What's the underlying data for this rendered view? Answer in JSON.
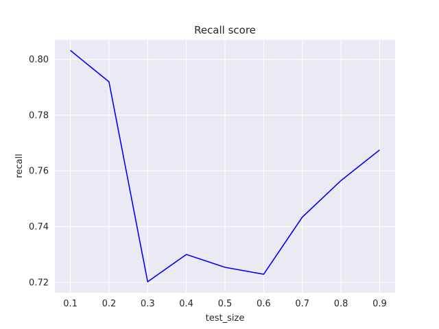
{
  "chart_data": {
    "type": "line",
    "title": "Recall score",
    "xlabel": "test_size",
    "ylabel": "recall",
    "x": [
      0.1,
      0.2,
      0.3,
      0.4,
      0.5,
      0.6,
      0.7,
      0.8,
      0.9
    ],
    "series": [
      {
        "values": [
          0.8032,
          0.7919,
          0.7202,
          0.73,
          0.7254,
          0.7229,
          0.7434,
          0.7565,
          0.7675
        ],
        "color": "#0000ff"
      }
    ],
    "xticks": [
      "0.1",
      "0.2",
      "0.3",
      "0.4",
      "0.5",
      "0.6",
      "0.7",
      "0.8",
      "0.9"
    ],
    "yticks": [
      "0.72",
      "0.74",
      "0.76",
      "0.78",
      "0.80"
    ],
    "xlim": [
      0.06,
      0.94
    ],
    "ylim": [
      0.7163,
      0.807
    ],
    "grid": true,
    "background_color": "#eaeaf2",
    "grid_color": "#ffffff"
  }
}
